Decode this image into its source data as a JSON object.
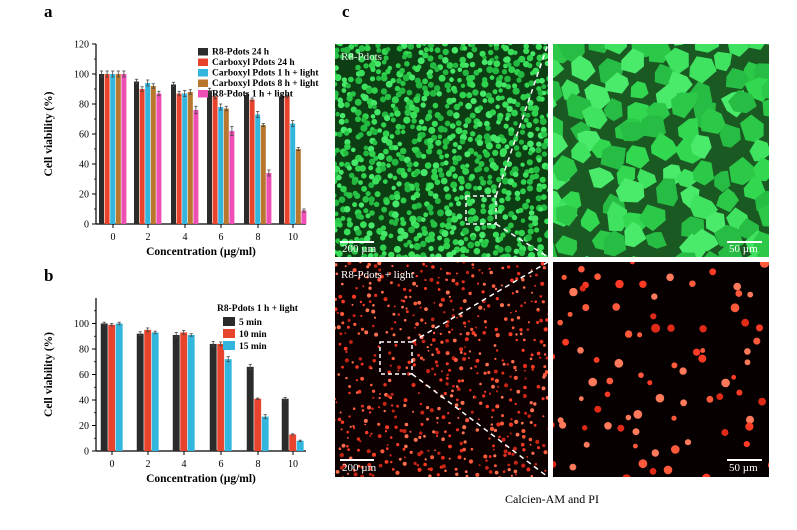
{
  "figure": {
    "caption": "Calcien-AM and PI"
  },
  "panels": [
    {
      "letter": "a",
      "chart_data": {
        "type": "bar",
        "title": "",
        "xlabel": "Concentration (µg/ml)",
        "ylabel": "Cell viability (%)",
        "ylim": [
          0,
          120
        ],
        "yticks": [
          0,
          20,
          40,
          60,
          80,
          100,
          120
        ],
        "categories": [
          "0",
          "2",
          "4",
          "6",
          "8",
          "10"
        ],
        "legend_position": "top-right",
        "series": [
          {
            "name": "R8-Pdots 24 h",
            "color": "#2b2b2b",
            "values": [
              100,
              95,
              93,
              89,
              86,
              85
            ]
          },
          {
            "name": "Carboxyl Pdots 24 h",
            "color": "#e8432d",
            "values": [
              100,
              90,
              87,
              85,
              83,
              85
            ]
          },
          {
            "name": "Carboxyl Pdots 1 h + light",
            "color": "#33b6dd",
            "values": [
              100,
              94,
              87,
              78,
              73,
              67
            ]
          },
          {
            "name": "Carboxyl Pdots 8 h + light",
            "color": "#b8772d",
            "values": [
              100,
              92,
              88,
              77,
              66,
              50
            ]
          },
          {
            "name": "R8-Pdots 1 h + light",
            "color": "#ee4fb4",
            "values": [
              100,
              87,
              76,
              62,
              34,
              9
            ]
          }
        ],
        "errors": [
          [
            2,
            1.5,
            1.5,
            1.5,
            1,
            1
          ],
          [
            2,
            1.5,
            1.5,
            1.5,
            1,
            1
          ],
          [
            2,
            2,
            2,
            2,
            2,
            2
          ],
          [
            2,
            1.5,
            1.5,
            1.5,
            1,
            1
          ],
          [
            2,
            1.5,
            2.5,
            3,
            2,
            1
          ]
        ]
      }
    },
    {
      "letter": "b",
      "chart_data": {
        "type": "bar",
        "title": "",
        "xlabel": "Concentration (µg/ml)",
        "ylabel": "Cell viability (%)",
        "ylim": [
          0,
          120
        ],
        "yticks": [
          0,
          20,
          40,
          60,
          80,
          100
        ],
        "categories": [
          "0",
          "2",
          "4",
          "6",
          "8",
          "10"
        ],
        "legend_title": "R8-Pdots 1 h + light",
        "legend_position": "top-right",
        "series": [
          {
            "name": "5 min",
            "color": "#2b2b2b",
            "values": [
              100,
              92,
              91,
              84,
              66,
              41
            ]
          },
          {
            "name": "10 min",
            "color": "#e8432d",
            "values": [
              99,
              95,
              93,
              84,
              41,
              13
            ]
          },
          {
            "name": "15 min",
            "color": "#33b6dd",
            "values": [
              100,
              93,
              91,
              72,
              27,
              8
            ]
          }
        ],
        "errors": [
          [
            1,
            1.5,
            2,
            2,
            2,
            1
          ],
          [
            1,
            1.5,
            1.5,
            1.5,
            0.5,
            0.5
          ],
          [
            1,
            1,
            1,
            2,
            1.5,
            0.5
          ]
        ]
      }
    },
    {
      "letter": "c",
      "micrographs": [
        {
          "label": "R8-Pdots",
          "scale": "200 µm",
          "stain": "calcein-green",
          "color": "#2fd34e"
        },
        {
          "label": "",
          "scale": "50 µm",
          "stain": "calcein-green-zoom",
          "color": "#2fd34e"
        },
        {
          "label": "R8-Pdots + light",
          "scale": "200 µm",
          "stain": "pi-red",
          "color": "#ff3b26"
        },
        {
          "label": "",
          "scale": "50 µm",
          "stain": "pi-red-zoom",
          "color": "#ff3b26"
        }
      ]
    }
  ]
}
